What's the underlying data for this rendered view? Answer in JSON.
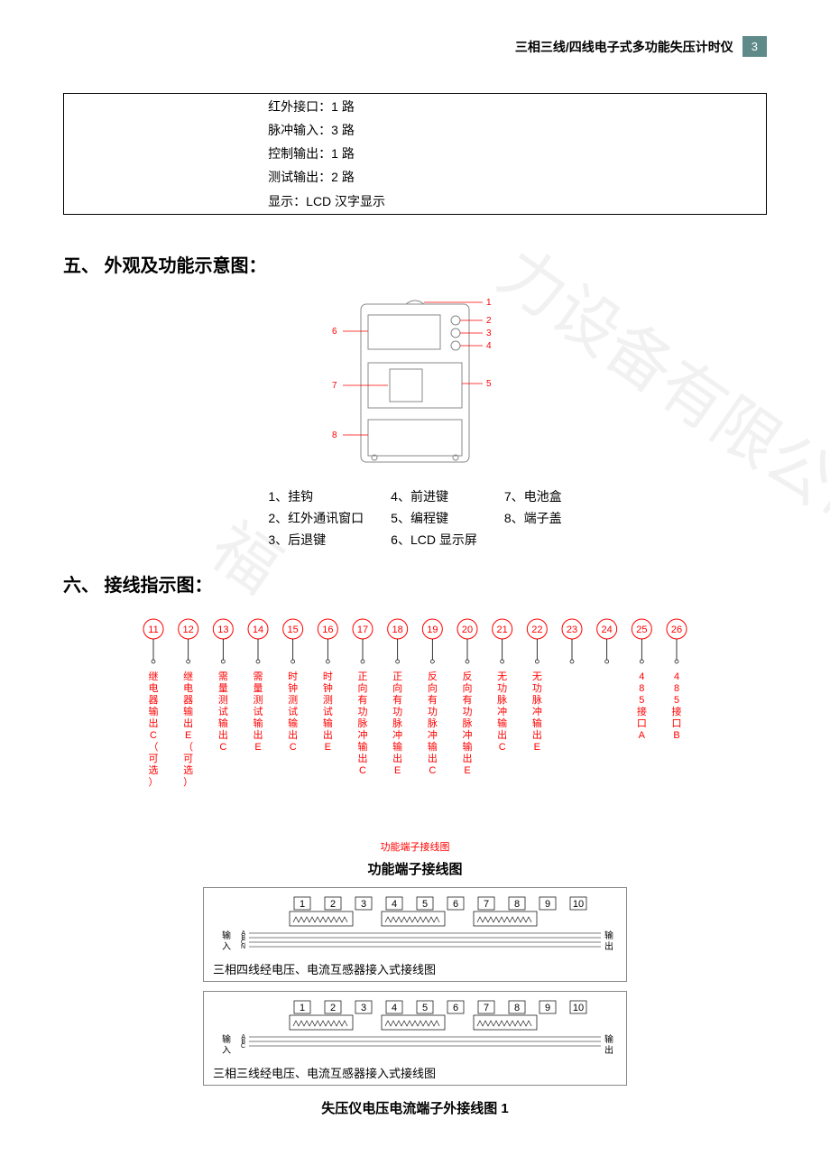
{
  "header": {
    "title": "三相三线/四线电子式多功能失压计时仪",
    "page_number": "3",
    "badge_bg": "#5f8a8a",
    "badge_fg": "#ffffff"
  },
  "spec_rows": [
    "红外接口：1 路",
    "脉冲输入：3 路",
    "控制输出：1 路",
    "测试输出：2 路",
    "显示：LCD 汉字显示"
  ],
  "section5_heading": "五、 外观及功能示意图：",
  "appearance": {
    "callouts": [
      "1",
      "2",
      "3",
      "4",
      "5",
      "6",
      "7",
      "8"
    ],
    "stroke": "#777777",
    "text_color": "#ff0000",
    "legend": [
      [
        "1、挂钩",
        "2、红外通讯窗口",
        "3、后退键"
      ],
      [
        "4、前进键",
        "5、编程键",
        "6、LCD 显示屏"
      ],
      [
        "7、电池盒",
        "8、端子盖"
      ]
    ]
  },
  "section6_heading": "六、 接线指示图：",
  "terminals": {
    "circle_color": "#ff0000",
    "text_color": "#ff0000",
    "stroke": "#000000",
    "start": 11,
    "end": 26,
    "labels": [
      "继电器输出C（可选）",
      "继电器输出E（可选）",
      "需量测试输出C",
      "需量测试输出E",
      "时钟测试输出C",
      "时钟测试输出E",
      "正向有功脉冲输出C",
      "正向有功脉冲输出E",
      "反向有功脉冲输出C",
      "反向有功脉冲输出E",
      "无功脉冲输出C",
      "无功脉冲输出E",
      "",
      "",
      "485接口A",
      "485接口B"
    ],
    "caption_red": "功能端子接线图",
    "caption_bold": "功能端子接线图"
  },
  "wiring": {
    "numbers": [
      1,
      2,
      3,
      4,
      5,
      6,
      7,
      8,
      9,
      10
    ],
    "box1_caption": "三相四线经电压、电流互感器接入式接线图",
    "box2_caption": "三相三线经电压、电流互感器接入式接线图",
    "left_label": "输入",
    "right_label": "输出",
    "left_letters": [
      "A",
      "B",
      "C",
      "N"
    ],
    "left_letters_3w": [
      "A",
      "B",
      "C"
    ]
  },
  "final_caption": "失压仪电压电流端子外接线图 1",
  "watermark_text": "福… 力设备有限公司"
}
